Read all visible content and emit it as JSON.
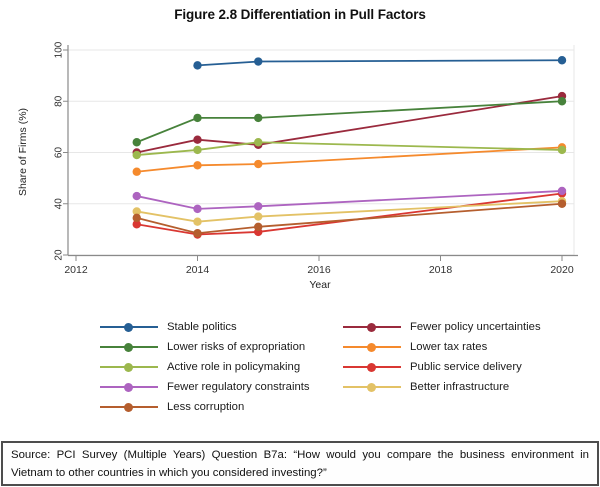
{
  "figure": {
    "title": "Figure 2.8 Differentiation in Pull Factors"
  },
  "source_note": "Source: PCI Survey (Multiple Years) Question B7a: “How would you compare the business environment in Vietnam to other countries in which you considered investing?”",
  "chart_data": {
    "type": "line",
    "title": "Figure 2.8 Differentiation in Pull Factors",
    "xlabel": "Year",
    "ylabel": "Share of Firms (%)",
    "xlim": [
      2012,
      2020.3
    ],
    "ylim": [
      20,
      100
    ],
    "xticks": [
      2012,
      2014,
      2016,
      2018,
      2020
    ],
    "yticks": [
      20,
      40,
      60,
      80,
      100
    ],
    "grid": "horizontal",
    "gridline_color": "#e7e7e7",
    "axis_color": "#8a8a8a",
    "tick_label_color": "#333333",
    "y_tick_labels_rotated": true,
    "legend_position": "below-two-columns",
    "series": [
      {
        "name": "Stable politics",
        "color": "#265f94",
        "legend_column": "left",
        "x": [
          2014,
          2015,
          2020
        ],
        "y": [
          94,
          95.5,
          96
        ]
      },
      {
        "name": "Fewer policy uncertainties",
        "color": "#9a2a3d",
        "legend_column": "right",
        "x": [
          2013,
          2014,
          2015,
          2020
        ],
        "y": [
          60,
          65,
          63,
          82
        ]
      },
      {
        "name": "Lower risks of expropriation",
        "color": "#47823b",
        "legend_column": "left",
        "x": [
          2013,
          2014,
          2015,
          2020
        ],
        "y": [
          64,
          73.5,
          73.5,
          80
        ]
      },
      {
        "name": "Lower tax rates",
        "color": "#f58a2d",
        "legend_column": "right",
        "x": [
          2013,
          2014,
          2015,
          2020
        ],
        "y": [
          52.5,
          55,
          55.5,
          62
        ]
      },
      {
        "name": "Active role in policymaking",
        "color": "#9cb84e",
        "legend_column": "left",
        "x": [
          2013,
          2014,
          2015,
          2020
        ],
        "y": [
          59,
          61,
          64,
          61
        ]
      },
      {
        "name": "Public service delivery",
        "color": "#d93732",
        "legend_column": "right",
        "x": [
          2013,
          2014,
          2015,
          2020
        ],
        "y": [
          32,
          28,
          29,
          44
        ]
      },
      {
        "name": "Fewer regulatory constraints",
        "color": "#ad64c0",
        "legend_column": "left",
        "x": [
          2013,
          2014,
          2015,
          2020
        ],
        "y": [
          43,
          38,
          39,
          45
        ]
      },
      {
        "name": "Better infrastructure",
        "color": "#e3c266",
        "legend_column": "right",
        "x": [
          2013,
          2014,
          2015,
          2020
        ],
        "y": [
          37,
          33,
          35,
          41
        ]
      },
      {
        "name": "Less corruption",
        "color": "#b55e2e",
        "legend_column": "left",
        "x": [
          2013,
          2014,
          2015,
          2020
        ],
        "y": [
          34.5,
          28.5,
          31,
          40
        ]
      }
    ]
  }
}
